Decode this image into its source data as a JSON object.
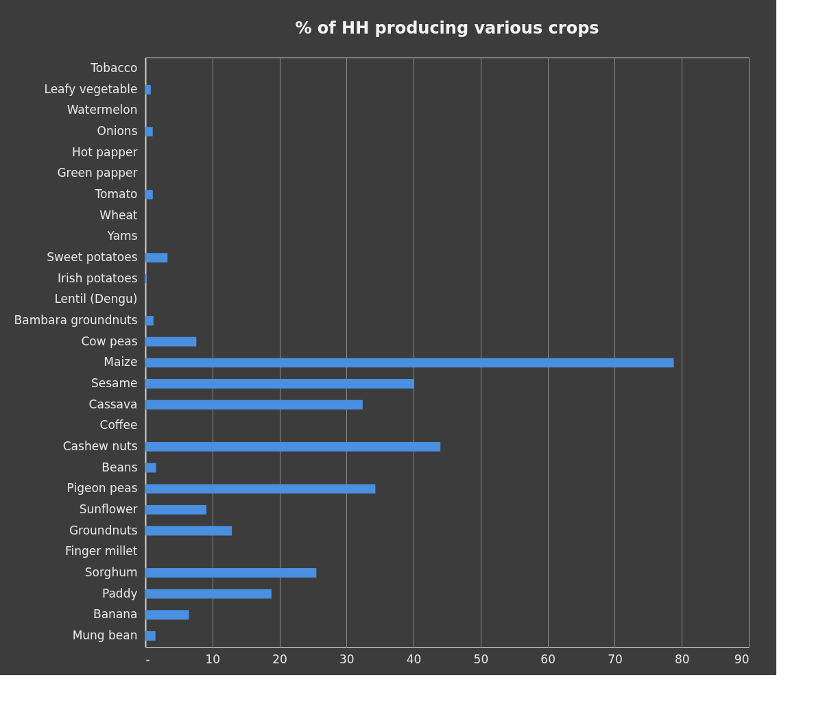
{
  "chart_data": {
    "type": "bar",
    "orientation": "horizontal",
    "title": "% of HH producing various crops",
    "categories": [
      "Tobacco",
      "Leafy vegetable",
      "Watermelon",
      "Onions",
      "Hot papper",
      "Green papper",
      "Tomato",
      "Wheat",
      "Yams",
      "Sweet potatoes",
      "Irish potatoes",
      "Lentil (Dengu)",
      "Bambara groundnuts",
      "Cow peas",
      "Maize",
      "Sesame",
      "Cassava",
      "Coffee",
      "Cashew nuts",
      "Beans",
      "Pigeon peas",
      "Sunflower",
      "Groundnuts",
      "Finger millet",
      "Sorghum",
      "Paddy",
      "Banana",
      "Mung bean"
    ],
    "values": [
      0,
      0.8,
      0,
      1.1,
      0,
      0,
      1.1,
      0,
      0,
      3.3,
      0.2,
      0,
      1.2,
      7.6,
      78.8,
      40,
      32.4,
      0,
      44,
      1.6,
      34.3,
      9.1,
      12.9,
      0,
      25.5,
      18.8,
      6.5,
      1.5
    ],
    "color": "#4a8fe0",
    "xlim": [
      0,
      90
    ],
    "xticks": [
      {
        "value": 0,
        "label": "-"
      },
      10,
      20,
      30,
      40,
      50,
      60,
      70,
      80,
      90
    ],
    "grid": "x"
  }
}
